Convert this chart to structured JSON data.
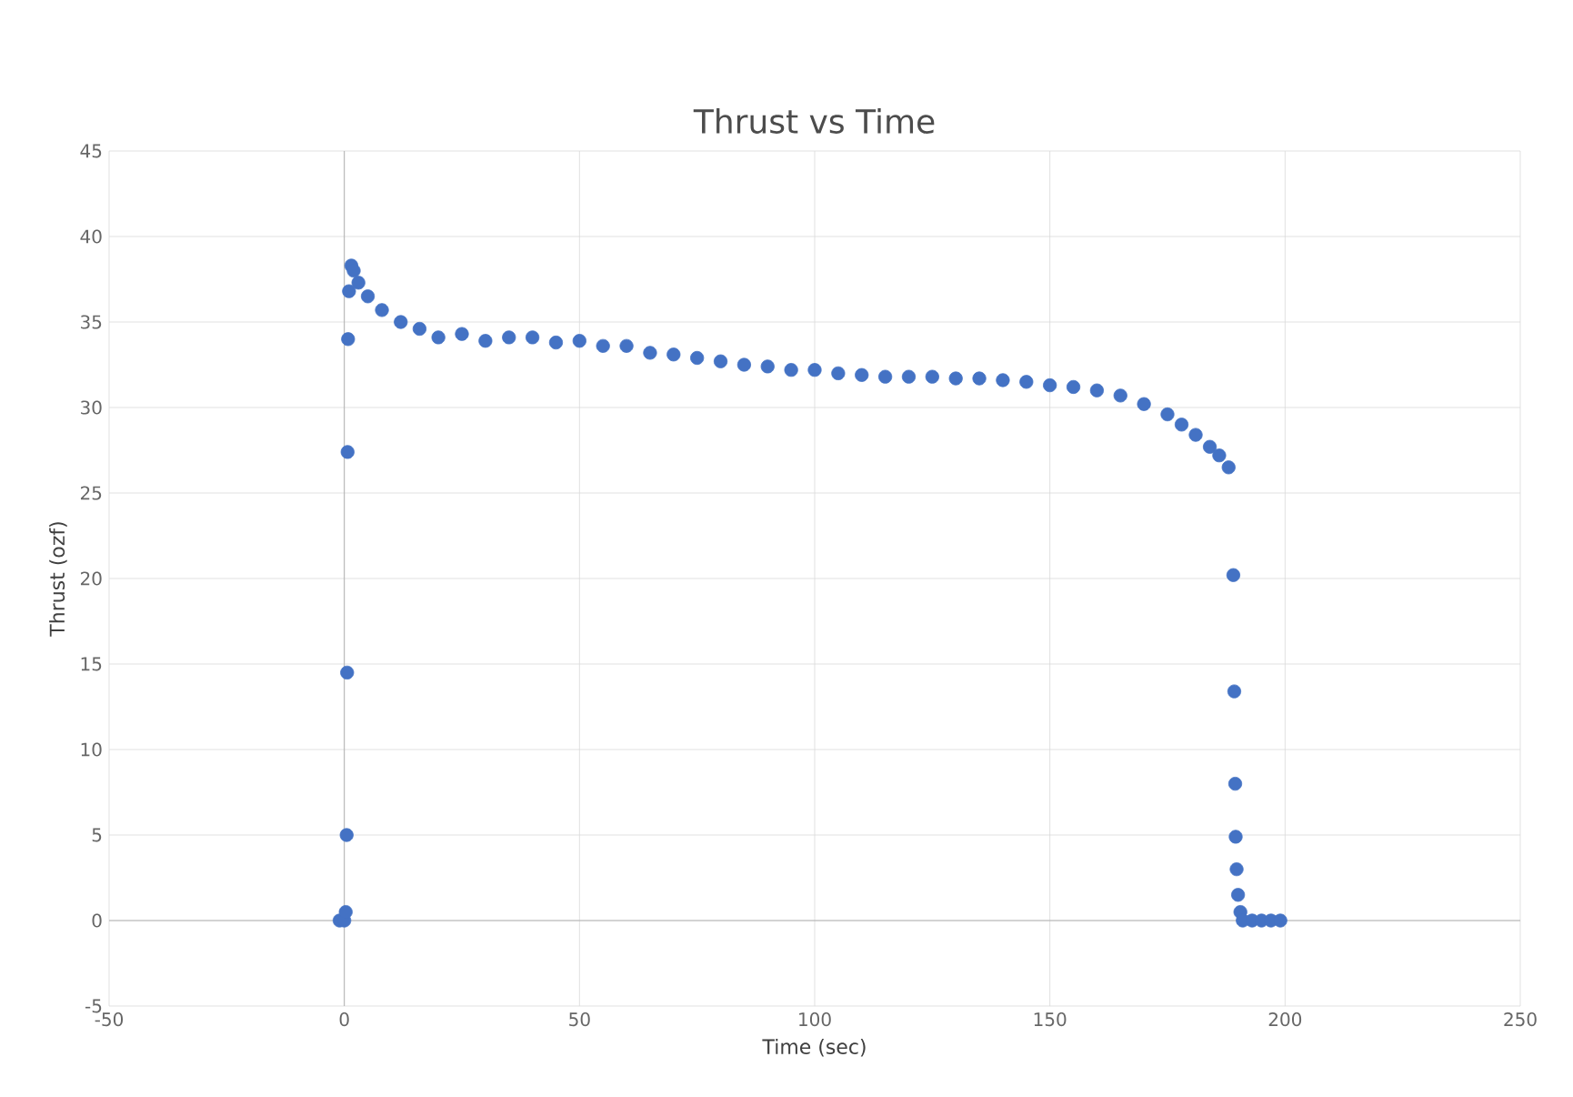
{
  "chart_data": {
    "type": "scatter",
    "title": "Thrust vs Time",
    "xlabel": "Time (sec)",
    "ylabel": "Thrust (ozf)",
    "xlim": [
      -50,
      250
    ],
    "xticks": [
      -50,
      0,
      50,
      100,
      150,
      200,
      250
    ],
    "ylim": [
      -5,
      45
    ],
    "yticks": [
      -5,
      0,
      5,
      10,
      15,
      20,
      25,
      30,
      35,
      40,
      45
    ],
    "grid": true,
    "marker": "circle",
    "series": [
      {
        "color": "#4472c4",
        "x": [
          -1,
          0,
          0.3,
          0.5,
          0.6,
          0.7,
          0.8,
          1,
          1.5,
          2,
          3,
          5,
          8,
          12,
          16,
          20,
          25,
          30,
          35,
          40,
          45,
          50,
          55,
          60,
          65,
          70,
          75,
          80,
          85,
          90,
          95,
          100,
          105,
          110,
          115,
          120,
          125,
          130,
          135,
          140,
          145,
          150,
          155,
          160,
          165,
          170,
          175,
          178,
          181,
          184,
          186,
          188,
          189,
          189.2,
          189.4,
          189.5,
          189.7,
          190,
          190.5,
          191,
          193,
          195,
          197,
          199
        ],
        "values": [
          0,
          0,
          0.5,
          5,
          14.5,
          27.4,
          34,
          36.8,
          38.3,
          38,
          37.3,
          36.5,
          35.7,
          35,
          34.6,
          34.1,
          34.3,
          33.9,
          34.1,
          34.1,
          33.8,
          33.9,
          33.6,
          33.6,
          33.2,
          33.1,
          32.9,
          32.7,
          32.5,
          32.4,
          32.2,
          32.2,
          32,
          31.9,
          31.8,
          31.8,
          31.8,
          31.7,
          31.7,
          31.6,
          31.5,
          31.3,
          31.2,
          31,
          30.7,
          30.2,
          29.6,
          29,
          28.4,
          27.7,
          27.2,
          26.5,
          20.2,
          13.4,
          8,
          4.9,
          3,
          1.5,
          0.5,
          0,
          0,
          0,
          0,
          0
        ]
      }
    ]
  }
}
